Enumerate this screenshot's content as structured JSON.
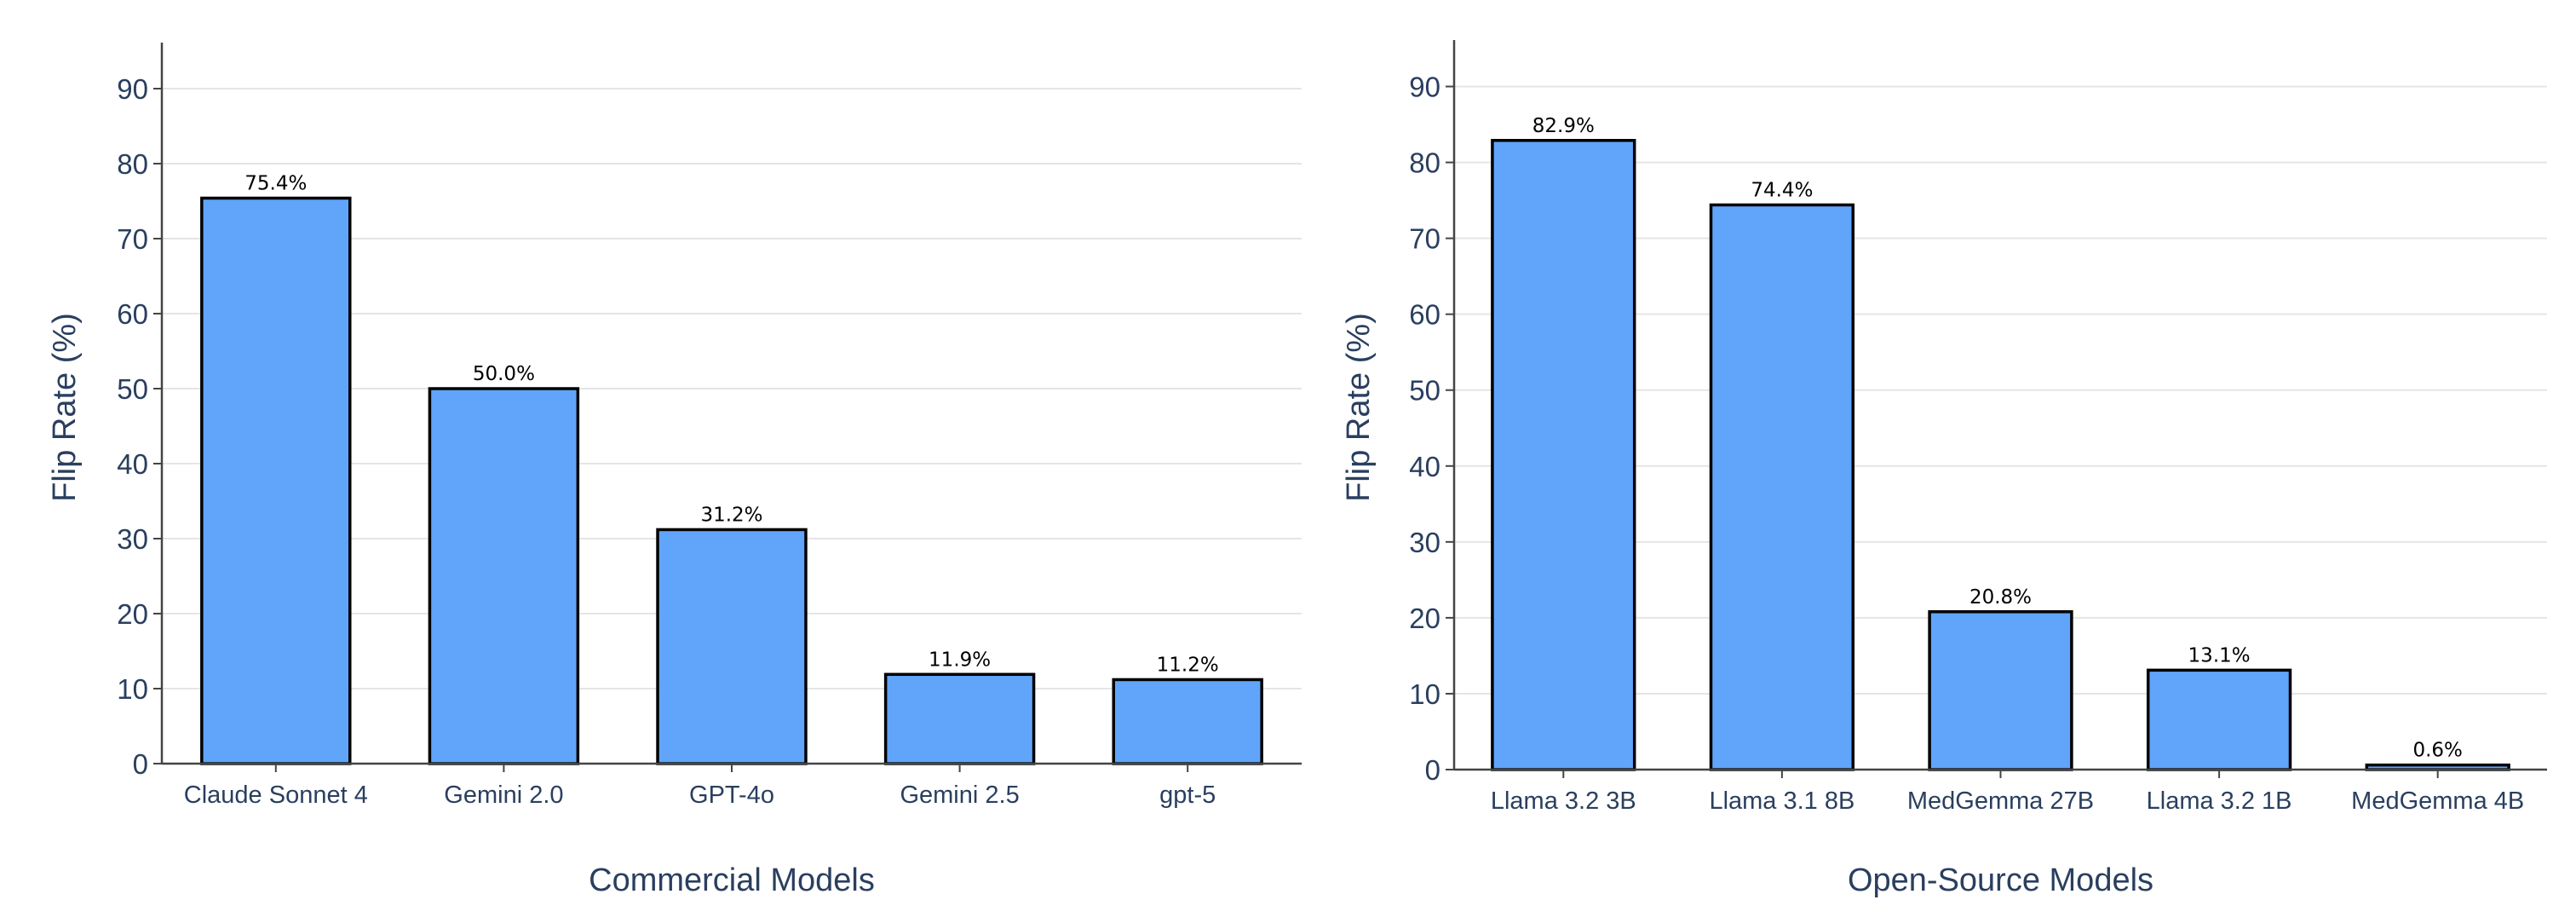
{
  "chart_data": [
    {
      "type": "bar",
      "title": "",
      "xlabel": "Commercial Models",
      "ylabel": "Flip Rate (%)",
      "ylim": [
        0,
        95
      ],
      "yticks": [
        0,
        10,
        20,
        30,
        40,
        50,
        60,
        70,
        80,
        90
      ],
      "grid": "horizontal",
      "categories": [
        "Claude Sonnet 4",
        "Gemini 2.0",
        "GPT-4o",
        "Gemini 2.5",
        "gpt-5"
      ],
      "values": [
        75.4,
        50.0,
        31.2,
        11.9,
        11.2
      ],
      "data_labels": [
        "75.4%",
        "50.0%",
        "31.2%",
        "11.9%",
        "11.2%"
      ],
      "bar_color": "#60a5fa",
      "bar_edge_color": "#000000"
    },
    {
      "type": "bar",
      "title": "",
      "xlabel": "Open-Source Models",
      "ylabel": "Flip Rate (%)",
      "ylim": [
        0,
        95
      ],
      "yticks": [
        0,
        10,
        20,
        30,
        40,
        50,
        60,
        70,
        80,
        90
      ],
      "grid": "horizontal",
      "categories": [
        "Llama 3.2 3B",
        "Llama 3.1 8B",
        "MedGemma 27B",
        "Llama 3.2 1B",
        "MedGemma 4B"
      ],
      "values": [
        82.9,
        74.4,
        20.8,
        13.1,
        0.6
      ],
      "data_labels": [
        "82.9%",
        "74.4%",
        "20.8%",
        "13.1%",
        "0.6%"
      ],
      "bar_color": "#60a5fa",
      "bar_edge_color": "#000000"
    }
  ]
}
